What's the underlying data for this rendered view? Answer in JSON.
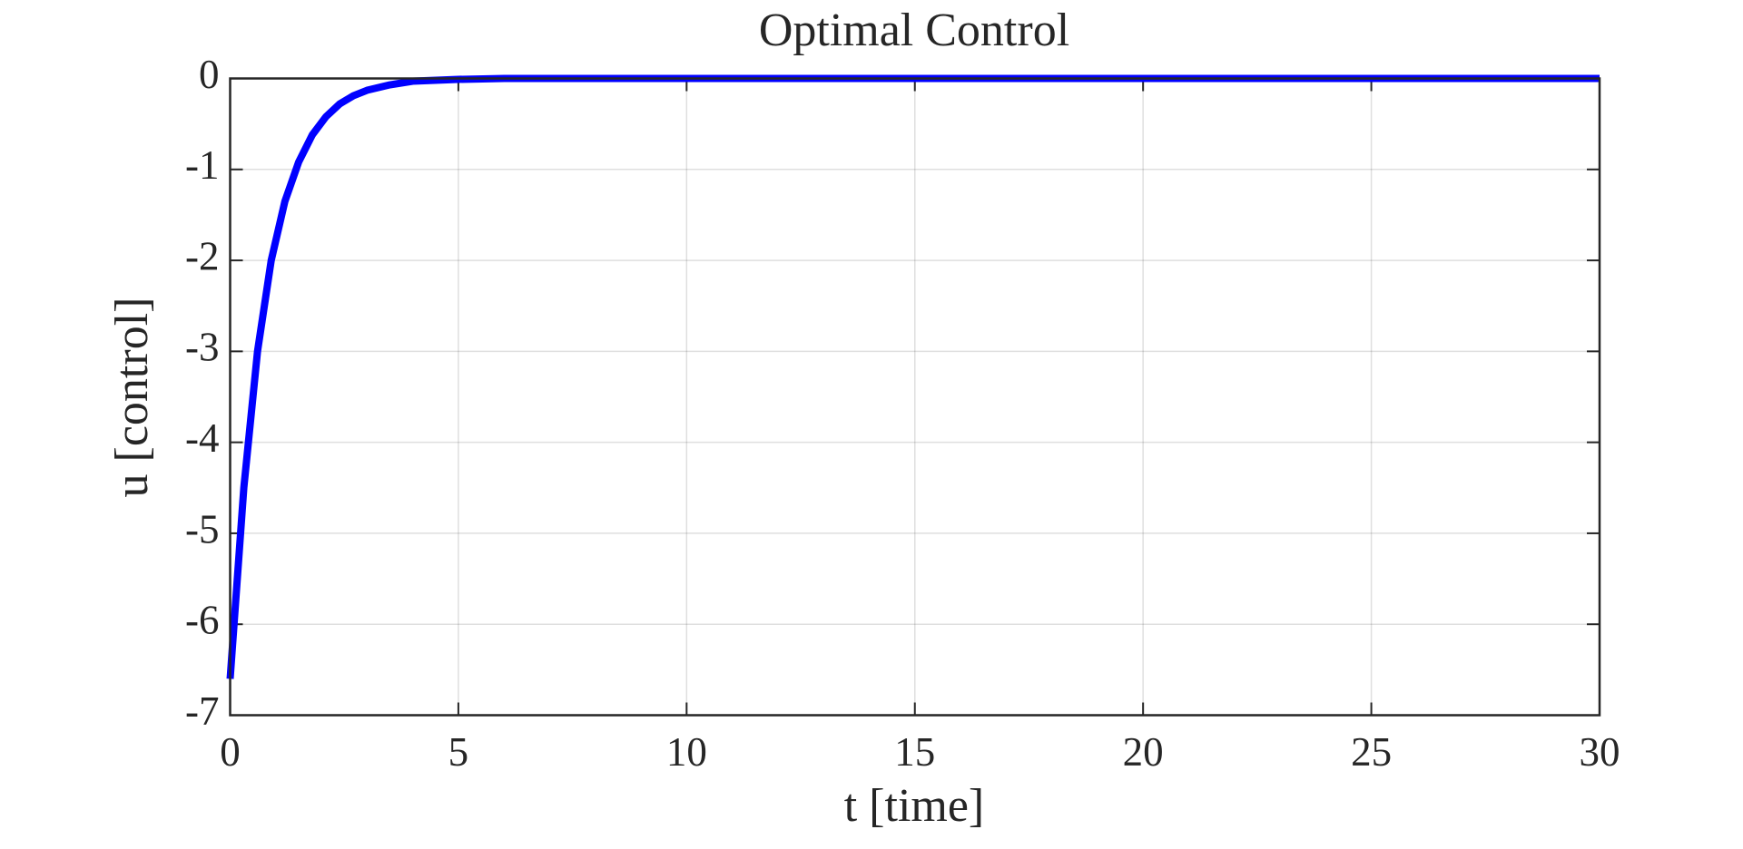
{
  "chart_data": {
    "type": "line",
    "title": "Optimal Control",
    "x_label": "t [time]",
    "y_label": "u [control]",
    "x": [
      0,
      0.3,
      0.6,
      0.9,
      1.2,
      1.5,
      1.8,
      2.1,
      2.4,
      2.7,
      3.0,
      3.5,
      4,
      5,
      6,
      7,
      10,
      15,
      20,
      25,
      30
    ],
    "series": [
      {
        "name": "u",
        "color": "#0000ff",
        "values": [
          -6.6,
          -4.5,
          -3.0,
          -2.0,
          -1.35,
          -0.92,
          -0.62,
          -0.42,
          -0.28,
          -0.19,
          -0.13,
          -0.07,
          -0.03,
          -0.01,
          0,
          0,
          0,
          0,
          0,
          0,
          0
        ]
      }
    ],
    "xlim": [
      0,
      30
    ],
    "xticks": [
      0,
      5,
      10,
      15,
      20,
      25,
      30
    ],
    "ylim": [
      -7,
      0
    ],
    "yticks": [
      -7,
      -6,
      -5,
      -4,
      -3,
      -2,
      -1,
      0
    ],
    "grid": true
  }
}
